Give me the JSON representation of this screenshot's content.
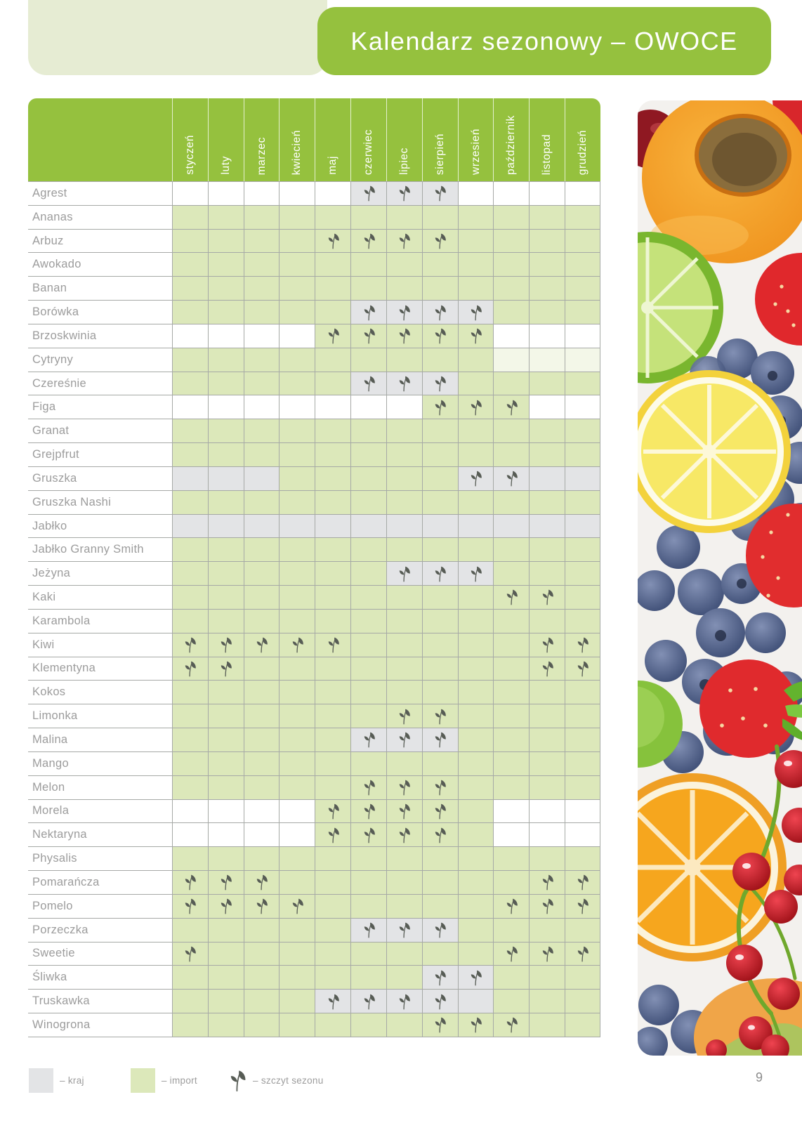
{
  "page": {
    "number": "9"
  },
  "header": {
    "title": "Kalendarz sezonowy – OWOCE"
  },
  "calendar": {
    "months": [
      "styczeń",
      "luty",
      "marzec",
      "kwiecień",
      "maj",
      "czerwiec",
      "lipiec",
      "sierpień",
      "wrzesień",
      "październik",
      "listopad",
      "grudzień"
    ],
    "cell_codes": {
      "n": "niedostępne",
      "i": "import",
      "k": "kraj",
      "p": "import (blady)",
      "I": "import + szczyt sezonu",
      "K": "kraj + szczyt sezonu"
    },
    "rows": [
      {
        "name": "Agrest",
        "cells": "nnnnnKKKnnnn"
      },
      {
        "name": "Ananas",
        "cells": "iiiiiiiiiiii"
      },
      {
        "name": "Arbuz",
        "cells": "iiiiIIIIiiii"
      },
      {
        "name": "Awokado",
        "cells": "iiiiiiiiiiii"
      },
      {
        "name": "Banan",
        "cells": "iiiiiiiiiiii"
      },
      {
        "name": "Borówka",
        "cells": "iiiiiKKKKiii"
      },
      {
        "name": "Brzoskwinia",
        "cells": "nnnnIIIIInnn"
      },
      {
        "name": "Cytryny",
        "cells": "iiiiiiiiippp"
      },
      {
        "name": "Czereśnie",
        "cells": "iiiiiKKKiiii"
      },
      {
        "name": "Figa",
        "cells": "nnnnnnnIIInn"
      },
      {
        "name": "Granat",
        "cells": "iiiiiiiiiiii"
      },
      {
        "name": "Grejpfrut",
        "cells": "iiiiiiiiiiii"
      },
      {
        "name": "Gruszka",
        "cells": "kkkiiiiiKKkk"
      },
      {
        "name": "Gruszka Nashi",
        "cells": "iiiiiiiiiiii"
      },
      {
        "name": "Jabłko",
        "cells": "kkkkkkkkkkkk"
      },
      {
        "name": "Jabłko Granny Smith",
        "cells": "iiiiiiiiiiii"
      },
      {
        "name": "Jeżyna",
        "cells": "iiiiiiKKKiii"
      },
      {
        "name": "Kaki",
        "cells": "iiiiiiiiiIIi"
      },
      {
        "name": "Karambola",
        "cells": "iiiiiiiiiiii"
      },
      {
        "name": "Kiwi",
        "cells": "IIIIIiiiiiII"
      },
      {
        "name": "Klementyna",
        "cells": "IIiiiiiiiiII"
      },
      {
        "name": "Kokos",
        "cells": "iiiiiiiiiiii"
      },
      {
        "name": "Limonka",
        "cells": "iiiiiiIIiiii"
      },
      {
        "name": "Malina",
        "cells": "iiiiiKKKiiii"
      },
      {
        "name": "Mango",
        "cells": "iiiiiiiiiiii"
      },
      {
        "name": "Melon",
        "cells": "iiiiiIIIiiii"
      },
      {
        "name": "Morela",
        "cells": "nnnnIIIIinnn"
      },
      {
        "name": "Nektaryna",
        "cells": "nnnnIIIIinnn"
      },
      {
        "name": "Physalis",
        "cells": "iiiiiiiiiiii"
      },
      {
        "name": "Pomarańcza",
        "cells": "IIIiiiiiiiII"
      },
      {
        "name": "Pomelo",
        "cells": "IIIIiiiiiIII"
      },
      {
        "name": "Porzeczka",
        "cells": "iiiiiKKKiiii"
      },
      {
        "name": "Sweetie",
        "cells": "IiiiiiiiiIII"
      },
      {
        "name": "Śliwka",
        "cells": "iiiiiiiKKiii"
      },
      {
        "name": "Truskawka",
        "cells": "iiiiKKKKkiii"
      },
      {
        "name": "Winogrona",
        "cells": "iiiiiiiIIIii"
      }
    ]
  },
  "legend": {
    "items": [
      {
        "icon": "kraj-swatch",
        "label": "– kraj"
      },
      {
        "icon": "import-swatch",
        "label": "– import"
      },
      {
        "icon": "leaf-icon",
        "label": "– szczyt sezonu"
      }
    ]
  },
  "colors": {
    "green": "#95c13e",
    "sage": "#e6ecd3",
    "cell_import": "#dce8ba",
    "cell_kraj": "#e3e4e6",
    "cell_pale": "#f3f7e8",
    "grid_line": "#a6a9a6",
    "leaf": "#575c55",
    "text_gray": "#9c9c9c",
    "title_text": "#ffffff"
  }
}
